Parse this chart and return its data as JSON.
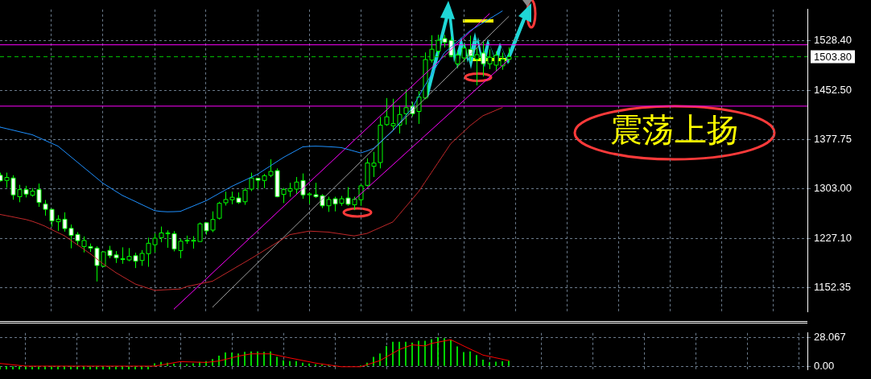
{
  "chart_data": [
    {
      "type": "candlestick",
      "categories": [
        null,
        null,
        null,
        null,
        null,
        null,
        null,
        null,
        null,
        null,
        null,
        null,
        null,
        null,
        null,
        null,
        null,
        null,
        null,
        null,
        null,
        null,
        null,
        null,
        null,
        null,
        null,
        null,
        null,
        null,
        null,
        null,
        null,
        null,
        null,
        null,
        null,
        null,
        null,
        null,
        null,
        null,
        null,
        null,
        null,
        null,
        null,
        null,
        null,
        null,
        null,
        null,
        null,
        null,
        null,
        null,
        null,
        null,
        null,
        null,
        null,
        null,
        null,
        null,
        null,
        null,
        null,
        null,
        null,
        null,
        null,
        null,
        null,
        null,
        null,
        null,
        null,
        null,
        null,
        null
      ],
      "ylim": [
        1116.2,
        1575.7
      ],
      "yticks": [
        {
          "value": 1528.4,
          "label": "1528.40"
        },
        {
          "value": 1452.5,
          "label": "1452.50"
        },
        {
          "value": 1377.75,
          "label": "1377.75"
        },
        {
          "value": 1303,
          "label": "1303.00"
        },
        {
          "value": 1227.1,
          "label": "1227.10"
        },
        {
          "value": 1152.35,
          "label": "1152.35"
        }
      ],
      "grid": true,
      "tick_labels": "y",
      "series": [
        {
          "type": "line",
          "color": "#1e90ff",
          "values": [
            1396.8,
            1394.5,
            1392.2,
            1389.8,
            1387.5,
            1385.2,
            1380.9,
            1376.6,
            1372.2,
            1367.9,
            1359.8,
            1351.7,
            1343.6,
            1335.5,
            1327.5,
            1319.4,
            1311.3,
            1305.2,
            1299,
            1292.9,
            1288.3,
            1283.7,
            1279,
            1274.4,
            1269.8,
            1268.5,
            1268,
            1268.2,
            1268.6,
            1272.7,
            1276.7,
            1280.8,
            1284.8,
            1290.3,
            1295.8,
            1301.2,
            1306.7,
            1311.3,
            1315.9,
            1320.6,
            1325.2,
            1331.6,
            1337.9,
            1344.3,
            1350.6,
            1356,
            1361.3,
            1366.7,
            1367.5,
            1367.8,
            1367.5,
            1367,
            1366.4,
            1365.6,
            1362.9,
            1360.2,
            1357.5,
            1360.6,
            1364.5,
            1373.3,
            1382.2,
            1391,
            1402.5,
            1414.1,
            1425.6,
            1443,
            1460.3,
            1476.8,
            1493.4,
            1509.9,
            1518.3,
            1526.7,
            1535,
            1543.4,
            1549.4,
            1555.4,
            1561.4,
            1567.4,
            1573.4,
            null
          ]
        },
        {
          "type": "line",
          "color": "#c0282a",
          "values": [
            1264,
            1262.1,
            1260.2,
            1258.2,
            1256.3,
            1253.5,
            1250,
            1246,
            1240.9,
            1236.3,
            1231.6,
            1224.7,
            1217.8,
            1211.1,
            1204.3,
            1196.6,
            1188.9,
            1182.2,
            1175.4,
            1169.6,
            1163.9,
            1158.1,
            1154.9,
            1151.7,
            1148.5,
            1149,
            1149.5,
            1150,
            1150.5,
            1154.3,
            1156.3,
            1158.4,
            1160.4,
            1162.4,
            1168.2,
            1173.9,
            1179.7,
            1185.5,
            1191.2,
            1197,
            1203,
            1209,
            1215.1,
            1221.1,
            1227.2,
            1233.2,
            1235,
            1236.8,
            1238.6,
            1238.1,
            1237.6,
            1237.1,
            1235.6,
            1234.2,
            1232.7,
            1231.3,
            1233.2,
            1235.1,
            1239.5,
            1243.8,
            1248.2,
            1252.5,
            1264,
            1275.5,
            1287.1,
            1298.6,
            1313.2,
            1327.8,
            1342.5,
            1357.1,
            1371.7,
            1380.8,
            1389.9,
            1399,
            1406.6,
            1414.1,
            1418.2,
            1422.4,
            1426.5,
            null
          ]
        },
        {
          "type": "line",
          "color": "#ff00ff",
          "values": [
            null,
            null,
            null,
            null,
            null,
            null,
            null,
            null,
            null,
            null,
            null,
            null,
            null,
            null,
            null,
            null,
            null,
            null,
            null,
            null,
            null,
            null,
            null,
            null,
            null,
            null,
            null,
            1119.9,
            1129,
            1138.2,
            1147.4,
            1156.6,
            1165.7,
            1174.9,
            1184.1,
            1193.2,
            1202.4,
            1211.6,
            1220.8,
            1229.9,
            1239.1,
            1248.3,
            1257.4,
            1266.6,
            1275.8,
            1285,
            1294.1,
            1303.3,
            1312.5,
            1321.7,
            1330.8,
            1340,
            1349.2,
            1358.3,
            1367.5,
            1376.7,
            1385.9,
            1395,
            1404.2,
            1413.4,
            1422.5,
            1431.7,
            1440.9,
            1450.1,
            1459.2,
            1468.4,
            1477.6,
            1486.7,
            1495.9,
            1505.1,
            1514.3,
            1523.4,
            1532.6,
            1541.8,
            1550.9,
            1560.1,
            1569.3,
            null,
            null,
            null
          ]
        },
        {
          "type": "line",
          "color": "#ff00ff",
          "values": [
            null,
            null,
            null,
            null,
            null,
            null,
            null,
            null,
            null,
            null,
            null,
            null,
            null,
            null,
            null,
            null,
            null,
            null,
            null,
            null,
            null,
            null,
            null,
            null,
            null,
            null,
            null,
            null,
            null,
            null,
            null,
            null,
            null,
            null,
            null,
            null,
            null,
            null,
            null,
            null,
            null,
            null,
            null,
            null,
            null,
            null,
            null,
            null,
            null,
            null,
            null,
            null,
            null,
            null,
            null,
            1286.2,
            1295,
            1303.9,
            1312.8,
            1321.7,
            1330.6,
            1339.4,
            1348.3,
            1357.2,
            1366.1,
            1375,
            1383.8,
            1392.7,
            1401.6,
            1410.5,
            1419.3,
            1428.2,
            1437.1,
            1446,
            1454.9,
            1463.7,
            1472.6,
            1481.5,
            1490.4,
            1499.3
          ]
        },
        {
          "type": "line",
          "color": "#a0a0a0",
          "values": [
            null,
            null,
            null,
            null,
            null,
            null,
            null,
            null,
            null,
            null,
            null,
            null,
            null,
            null,
            null,
            null,
            null,
            null,
            null,
            null,
            null,
            null,
            null,
            null,
            null,
            null,
            null,
            null,
            null,
            null,
            null,
            null,
            null,
            1122.9,
            1132.5,
            1142.2,
            1151.8,
            1161.4,
            1171,
            1180.6,
            1190.2,
            1199.8,
            1209.4,
            1219.1,
            1228.7,
            1238.3,
            1247.9,
            1257.5,
            1267.1,
            1276.7,
            1286.4,
            1296,
            1305.6,
            1315.2,
            1324.8,
            1334.4,
            1344,
            1353.6,
            1363.3,
            1372.9,
            1382.5,
            1392.1,
            1401.7,
            1411.3,
            1420.9,
            1430.5,
            1440.2,
            1449.8,
            1459.4,
            1469,
            1478.6,
            1488.2,
            1497.8,
            1507.5,
            1517.1,
            1526.7,
            1536.3,
            1545.9,
            1555.5,
            1565.1
          ]
        },
        {
          "color": "#00ff00",
          "colors": [
            "#ffffff",
            "#000000",
            "#ffffff",
            "#000000",
            "#ffffff",
            "#000000",
            "#ffffff",
            "#ffffff",
            "#ffffff",
            "#000000",
            "#ffffff",
            "#ffffff",
            "#ffffff",
            "#000000",
            "#ffffff",
            "#ffffff",
            "#000000",
            "#ffffff",
            "#ffffff",
            "#000000",
            "#000000",
            "#ffffff",
            "#000000",
            "#000000",
            "#000000",
            "#000000",
            "#000000",
            "#ffffff",
            "#000000",
            "#000000",
            "#000000",
            "#000000",
            "#ffffff",
            "#000000",
            "#000000",
            "#000000",
            "#000000",
            "#ffffff",
            "#000000",
            "#000000",
            "#ffffff",
            "#000000",
            "#000000",
            "#ffffff",
            "#000000",
            "#000000",
            "#000000",
            "#ffffff",
            "#000000",
            "#ffffff",
            "#ffffff",
            "#000000",
            "#ffffff",
            "#000000",
            "#ffffff",
            "#000000",
            "#000000",
            "#000000",
            "#000000",
            "#000000",
            "#000000",
            "#000000",
            "#000000",
            "#000000",
            "#ffffff",
            "#000000",
            "#000000",
            "#000000",
            "#000000",
            "#ffffff",
            "#ffffff",
            "#000000",
            "#000000",
            "#ffffff",
            "#000000",
            "#ffffff",
            "#000000",
            "#000000",
            "#000000",
            "#000000"
          ],
          "ohlc": [
            [
              1323.6,
              1327.5,
              1314,
              1315.2
            ],
            [
              1315.6,
              1327.5,
              1304.4,
              1320.2
            ],
            [
              1319.4,
              1323.6,
              1286.3,
              1293.6
            ],
            [
              1290.9,
              1309,
              1282.5,
              1301.7
            ],
            [
              1301.7,
              1307.5,
              1289.8,
              1294.8
            ],
            [
              1293.2,
              1304,
              1290.9,
              1299.4
            ],
            [
              1301.7,
              1310.9,
              1275.5,
              1282.1
            ],
            [
              1279.8,
              1285.9,
              1262.1,
              1271.7
            ],
            [
              1271.7,
              1272.4,
              1245.5,
              1254
            ],
            [
              1252.8,
              1262.8,
              1239,
              1256.7
            ],
            [
              1256.7,
              1267.1,
              1237.8,
              1242.4
            ],
            [
              1242.8,
              1248.6,
              1212.4,
              1232
            ],
            [
              1233.6,
              1237,
              1217.8,
              1224
            ],
            [
              1215.1,
              1230.5,
              1206.2,
              1224.3
            ],
            [
              1215.1,
              1219.7,
              1207,
              1212.8
            ],
            [
              1212.8,
              1215.5,
              1162,
              1186.2
            ],
            [
              1185.1,
              1207.8,
              1184,
              1207
            ],
            [
              1209.3,
              1216.2,
              1197.4,
              1201.2
            ],
            [
              1202.4,
              1208.2,
              1190.1,
              1197.8
            ],
            [
              1195.5,
              1213.9,
              1188.9,
              1196.6
            ],
            [
              1194.7,
              1212.8,
              1192.8,
              1200.1
            ],
            [
              1201.2,
              1205.8,
              1182.4,
              1192.8
            ],
            [
              1193.9,
              1209.7,
              1185.8,
              1204.7
            ],
            [
              1204.3,
              1228.6,
              1184.3,
              1220.1
            ],
            [
              1217.8,
              1235.1,
              1206.2,
              1227.8
            ],
            [
              1228.6,
              1245.5,
              1221.6,
              1235.8
            ],
            [
              1234.4,
              1239.7,
              1213.2,
              1235.8
            ],
            [
              1234.7,
              1238.6,
              1207.8,
              1211.3
            ],
            [
              1208.9,
              1227,
              1197.4,
              1223.2
            ],
            [
              1224,
              1231.7,
              1219.3,
              1224.8
            ],
            [
              1223.2,
              1230.9,
              1212,
              1224.7
            ],
            [
              1222.8,
              1251.7,
              1222.8,
              1249.7
            ],
            [
              1251.3,
              1252,
              1233.2,
              1239
            ],
            [
              1240.1,
              1268.6,
              1237,
              1256.3
            ],
            [
              1258.2,
              1283.2,
              1256.3,
              1280.9
            ],
            [
              1281.7,
              1298.6,
              1277.5,
              1286.7
            ],
            [
              1286.3,
              1298.6,
              1279.4,
              1290.1
            ],
            [
              1289,
              1297.4,
              1280,
              1282.1
            ],
            [
              1283.2,
              1304.4,
              1278.6,
              1300.9
            ],
            [
              1302.5,
              1327.5,
              1299.4,
              1319.4
            ],
            [
              1319,
              1319.5,
              1302.5,
              1315.9
            ],
            [
              1315.6,
              1325.6,
              1304,
              1322.9
            ],
            [
              1323.3,
              1347.9,
              1320.6,
              1329.4
            ],
            [
              1330.6,
              1334,
              1290,
              1290.9
            ],
            [
              1294.4,
              1304.4,
              1281.3,
              1301.7
            ],
            [
              1299.4,
              1312.1,
              1290.9,
              1303.2
            ],
            [
              1302.5,
              1320.9,
              1295.5,
              1313.2
            ],
            [
              1315.6,
              1326.3,
              1287.8,
              1293.6
            ],
            [
              1294.4,
              1297.8,
              1280.1,
              1295.1
            ],
            [
              1294,
              1312.1,
              1289,
              1290.9
            ],
            [
              1292.5,
              1294.8,
              1273.6,
              1277.1
            ],
            [
              1277.1,
              1290.9,
              1267.8,
              1286.7
            ],
            [
              1287.8,
              1290.9,
              1268.6,
              1279.8
            ],
            [
              1280.9,
              1292.1,
              1277.1,
              1287.8
            ],
            [
              1289,
              1305.5,
              1277.1,
              1279.4
            ],
            [
              1278.6,
              1290.9,
              1270.5,
              1287.1
            ],
            [
              1286.3,
              1310.2,
              1277.1,
              1307.5
            ],
            [
              1308.2,
              1349.4,
              1306.3,
              1342.2
            ],
            [
              1337.1,
              1359,
              1320.9,
              1342.1
            ],
            [
              1342.9,
              1412.2,
              1334,
              1399.8
            ],
            [
              1400.6,
              1441,
              1398.7,
              1412.5
            ],
            [
              1398.7,
              1439.9,
              1393,
              1402.1
            ],
            [
              1399.8,
              1429.5,
              1387.1,
              1416
            ],
            [
              1417.2,
              1454.1,
              1400.6,
              1426.4
            ],
            [
              1428.7,
              1435.2,
              1413,
              1417.2
            ],
            [
              1420.6,
              1451.4,
              1401.7,
              1442.6
            ],
            [
              1441,
              1510.3,
              1439.1,
              1499.5
            ],
            [
              1498.7,
              1536.5,
              1495,
              1515.3
            ],
            [
              1512.2,
              1537.2,
              1505,
              1528.8
            ],
            [
              1531.5,
              1537,
              1518,
              1525.7
            ],
            [
              1528.8,
              1534.2,
              1503.4,
              1505.7
            ],
            [
              1493,
              1512,
              1487,
              1506.5
            ],
            [
              1502,
              1523,
              1496,
              1517
            ],
            [
              1515,
              1536,
              1497,
              1505
            ],
            [
              1500,
              1518,
              1460.3,
              1507
            ],
            [
              1509.5,
              1526.5,
              1473.7,
              1493
            ],
            [
              1493,
              1515,
              1485,
              1503
            ],
            [
              1491,
              1512,
              1481.4,
              1506
            ],
            [
              1490,
              1510,
              1484,
              1500
            ],
            [
              1500,
              1518,
              1495,
              1503.8
            ]
          ]
        }
      ],
      "ref_lines": [
        {
          "axis": "y",
          "value": 1522,
          "color": "#ff00ff"
        },
        {
          "axis": "y",
          "value": 1428.7,
          "color": "#ff00ff"
        },
        {
          "axis": "y",
          "value": 1503.8,
          "label": "1503.80",
          "color": "#00c000",
          "line_style": "dashed"
        }
      ],
      "annotations": [
        "震荡上扬"
      ]
    },
    {
      "type": "bar",
      "categories": [
        null,
        null,
        null,
        null,
        null,
        null,
        null,
        null,
        null,
        null,
        null,
        null,
        null,
        null,
        null,
        null,
        null,
        null,
        null,
        null,
        null,
        null,
        null,
        null,
        null,
        null,
        null,
        null,
        null,
        null,
        null,
        null,
        null,
        null,
        null,
        null,
        null,
        null,
        null,
        null,
        null,
        null,
        null,
        null,
        null,
        null,
        null,
        null,
        null,
        null,
        null,
        null,
        null,
        null,
        null,
        null,
        null,
        null,
        null,
        null,
        null,
        null,
        null,
        null,
        null,
        null,
        null,
        null,
        null,
        null,
        null,
        null,
        null,
        null,
        null,
        null,
        null,
        null,
        null,
        null
      ],
      "ylim": [
        -3.3,
        32.4
      ],
      "yticks": [
        {
          "value": 28.067,
          "label": "28.067"
        },
        {
          "value": 0,
          "label": "0.00"
        }
      ],
      "grid": true,
      "tick_labels": "y",
      "series": [
        {
          "color": "#00ff00",
          "values": [
            -3,
            -3,
            -3,
            -3,
            -3,
            -3,
            -3,
            -3,
            -3,
            -3,
            -3,
            -3,
            -3,
            -3,
            -3,
            -3,
            -3,
            -3,
            -3,
            -3,
            -3,
            -3,
            -3,
            -3,
            2.5,
            3.8,
            3.1,
            2.1,
            1.5,
            1.8,
            2.5,
            3.8,
            4.7,
            6.7,
            10,
            13.2,
            12.9,
            12.2,
            13.7,
            14,
            14,
            13.7,
            14,
            8.7,
            5.4,
            4.7,
            4.7,
            3.1,
            2.3,
            1.5,
            1.1,
            0.3,
            0,
            null,
            null,
            null,
            0.3,
            3.1,
            8.7,
            12.2,
            19.5,
            23.6,
            23.6,
            23.6,
            22.8,
            24.5,
            24.5,
            26,
            28.067,
            27,
            25.5,
            19,
            13.5,
            14,
            10.5,
            6,
            3.5,
            4,
            4.5,
            5
          ]
        },
        {
          "type": "line",
          "color": "#ff0000",
          "values": [
            2.6,
            2,
            1.3,
            0.7,
            0,
            0,
            0,
            0,
            0,
            0,
            0,
            0,
            0,
            0,
            0,
            0,
            0,
            0,
            0,
            0,
            0,
            0,
            0,
            0,
            0,
            1.1,
            2.2,
            3.3,
            4.4,
            4.2,
            4,
            3.8,
            3.6,
            4.3,
            5,
            6.6,
            8.2,
            9.8,
            10.9,
            12,
            12,
            12,
            12,
            10.7,
            9.3,
            8,
            6.8,
            5.5,
            4.3,
            3,
            2.1,
            1.2,
            0.3,
            -0.6,
            -0.6,
            -0.6,
            -0.6,
            1.4,
            3.4,
            5.4,
            9,
            12.6,
            16.2,
            18.5,
            20.8,
            20.3,
            19.7,
            22.2,
            23.4,
            24.6,
            25.8,
            22.8,
            19.7,
            16.7,
            13.8,
            10.8,
            9.5,
            8.1,
            6.8,
            5.4
          ]
        }
      ]
    }
  ]
}
